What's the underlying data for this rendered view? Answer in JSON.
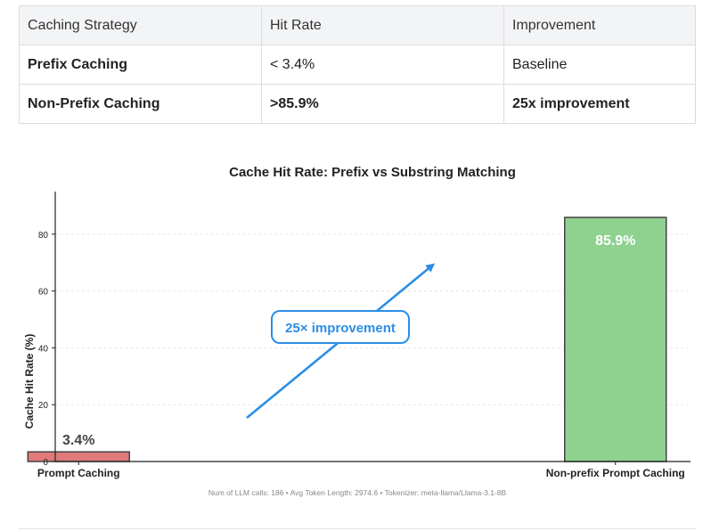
{
  "table": {
    "headers": [
      "Caching Strategy",
      "Hit Rate",
      "Improvement"
    ],
    "rows": [
      [
        "Prefix Caching",
        "< 3.4%",
        "Baseline"
      ],
      [
        "Non-Prefix Caching",
        ">85.9%",
        "25x improvement"
      ]
    ]
  },
  "chart_data": {
    "type": "bar",
    "title": "Cache Hit Rate: Prefix vs Substring Matching",
    "xlabel": "",
    "ylabel": "Cache Hit Rate (%)",
    "categories": [
      "Prompt Caching",
      "Non-prefix Prompt Caching"
    ],
    "values": [
      3.4,
      85.9
    ],
    "value_labels": [
      "3.4%",
      "85.9%"
    ],
    "ylim": [
      0,
      95
    ],
    "yticks": [
      0,
      20,
      40,
      60,
      80
    ],
    "grid": true,
    "bar_colors": [
      "#e07a7a",
      "#8fd18f"
    ],
    "annotation": "25× improvement",
    "annotation_color": "#2b8ee6",
    "footnote": "Num of LLM calls: 186  •  Avg Token Length: 2974.6  •  Tokenizer: meta-llama/Llama-3.1-8B"
  }
}
